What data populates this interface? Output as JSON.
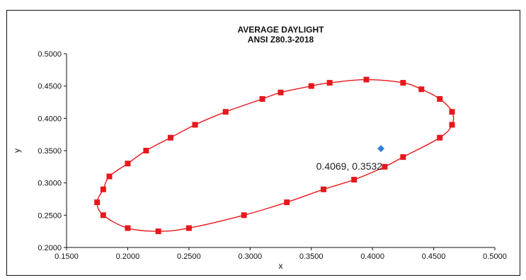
{
  "chart_data": {
    "type": "scatter",
    "title": "AVERAGE DAYLIGHT",
    "subtitle": "ANSI Z80.3-2018",
    "xlabel": "x",
    "ylabel": "y",
    "xlim": [
      0.15,
      0.5
    ],
    "ylim": [
      0.2,
      0.5
    ],
    "x_ticks": [
      "0.1500",
      "0.2000",
      "0.2500",
      "0.3000",
      "0.3500",
      "0.4000",
      "0.4500",
      "0.5000"
    ],
    "y_ticks": [
      "0.2000",
      "0.2500",
      "0.3000",
      "0.3500",
      "0.4000",
      "0.4500",
      "0.5000"
    ],
    "grid": false,
    "legend": "none",
    "series": [
      {
        "marker": "square",
        "color": "#e8171c",
        "line_color": "#e8171c",
        "closed": true,
        "points": [
          [
            0.175,
            0.27
          ],
          [
            0.18,
            0.29
          ],
          [
            0.185,
            0.31
          ],
          [
            0.2,
            0.33
          ],
          [
            0.215,
            0.35
          ],
          [
            0.235,
            0.37
          ],
          [
            0.255,
            0.39
          ],
          [
            0.28,
            0.41
          ],
          [
            0.31,
            0.43
          ],
          [
            0.325,
            0.44
          ],
          [
            0.35,
            0.45
          ],
          [
            0.365,
            0.455
          ],
          [
            0.395,
            0.46
          ],
          [
            0.425,
            0.455
          ],
          [
            0.44,
            0.445
          ],
          [
            0.455,
            0.43
          ],
          [
            0.465,
            0.41
          ],
          [
            0.465,
            0.39
          ],
          [
            0.455,
            0.37
          ],
          [
            0.425,
            0.34
          ],
          [
            0.41,
            0.325
          ],
          [
            0.385,
            0.305
          ],
          [
            0.36,
            0.29
          ],
          [
            0.33,
            0.27
          ],
          [
            0.295,
            0.25
          ],
          [
            0.25,
            0.23
          ],
          [
            0.225,
            0.225
          ],
          [
            0.2,
            0.23
          ],
          [
            0.18,
            0.25
          ]
        ]
      },
      {
        "marker": "diamond",
        "color": "#2f7fd6",
        "points": [
          [
            0.4069,
            0.3532
          ]
        ]
      }
    ],
    "annotations": [
      {
        "text": "0.4069, 0.3532",
        "x": 0.4069,
        "y": 0.3532
      }
    ]
  }
}
